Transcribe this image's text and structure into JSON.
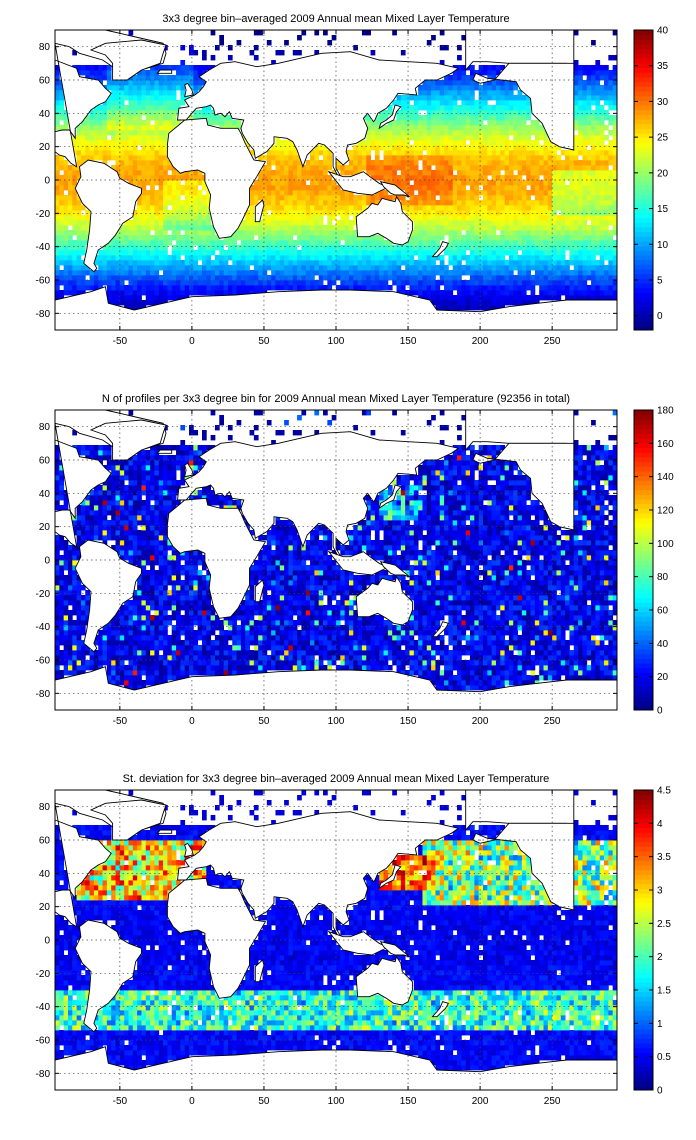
{
  "chart_data": [
    {
      "type": "heatmap",
      "title": "3x3 degree bin–averaged 2009 Annual mean Mixed Layer Temperature",
      "xlim": [
        -95,
        295
      ],
      "ylim": [
        -90,
        90
      ],
      "xticks": [
        -50,
        0,
        50,
        100,
        150,
        200,
        250
      ],
      "yticks": [
        -80,
        -60,
        -40,
        -20,
        0,
        20,
        40,
        60,
        80
      ],
      "colorbar": {
        "range": [
          -2,
          40
        ],
        "ticks": [
          0,
          5,
          10,
          15,
          20,
          25,
          30,
          35,
          40
        ],
        "colormap": "jet"
      },
      "grid": true,
      "field": "mixed-layer-temperature"
    },
    {
      "type": "heatmap",
      "title": "N of profiles per 3x3 degree bin for 2009 Annual mean Mixed Layer Temperature  (92356 in total)",
      "xlim": [
        -95,
        295
      ],
      "ylim": [
        -90,
        90
      ],
      "xticks": [
        -50,
        0,
        50,
        100,
        150,
        200,
        250
      ],
      "yticks": [
        -80,
        -60,
        -40,
        -20,
        0,
        20,
        40,
        60,
        80
      ],
      "colorbar": {
        "range": [
          0,
          180
        ],
        "ticks": [
          0,
          20,
          40,
          60,
          80,
          100,
          120,
          140,
          160,
          180
        ],
        "colormap": "jet"
      },
      "grid": true,
      "field": "profile-count"
    },
    {
      "type": "heatmap",
      "title": "St. deviation for 3x3 degree bin–averaged 2009 Annual mean Mixed Layer Temperature",
      "xlim": [
        -95,
        295
      ],
      "ylim": [
        -90,
        90
      ],
      "xticks": [
        -50,
        0,
        50,
        100,
        150,
        200,
        250
      ],
      "yticks": [
        -80,
        -60,
        -40,
        -20,
        0,
        20,
        40,
        60,
        80
      ],
      "colorbar": {
        "range": [
          0,
          4.5
        ],
        "ticks": [
          0,
          0.5,
          1,
          1.5,
          2,
          2.5,
          3,
          3.5,
          4,
          4.5
        ],
        "colormap": "jet"
      },
      "grid": true,
      "field": "standard-deviation"
    }
  ]
}
